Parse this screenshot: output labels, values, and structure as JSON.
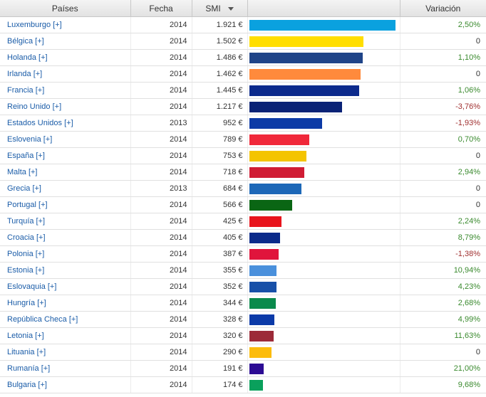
{
  "header": {
    "country": "Países",
    "date": "Fecha",
    "smi": "SMI",
    "variation": "Variación"
  },
  "chart_data": {
    "type": "table",
    "columns": [
      "Países",
      "Fecha",
      "SMI",
      "Variación"
    ],
    "value_max": 1921,
    "rows": [
      {
        "country": "Luxemburgo [+]",
        "date": "2014",
        "smi_label": "1.921 €",
        "value": 1921,
        "color": "#0aa1df",
        "variation": "2,50%",
        "sign": "pos"
      },
      {
        "country": "Bélgica [+]",
        "date": "2014",
        "smi_label": "1.502 €",
        "value": 1502,
        "color": "#ffde00",
        "variation": "0",
        "sign": "zero"
      },
      {
        "country": "Holanda [+]",
        "date": "2014",
        "smi_label": "1.486 €",
        "value": 1486,
        "color": "#1f4488",
        "variation": "1,10%",
        "sign": "pos"
      },
      {
        "country": "Irlanda [+]",
        "date": "2014",
        "smi_label": "1.462 €",
        "value": 1462,
        "color": "#ff8a3c",
        "variation": "0",
        "sign": "zero"
      },
      {
        "country": "Francia [+]",
        "date": "2014",
        "smi_label": "1.445 €",
        "value": 1445,
        "color": "#0c2a8c",
        "variation": "1,06%",
        "sign": "pos"
      },
      {
        "country": "Reino Unido [+]",
        "date": "2014",
        "smi_label": "1.217 €",
        "value": 1217,
        "color": "#0a2276",
        "variation": "-3,76%",
        "sign": "neg"
      },
      {
        "country": "Estados Unidos [+]",
        "date": "2013",
        "smi_label": "952 €",
        "value": 952,
        "color": "#0c3aa6",
        "variation": "-1,93%",
        "sign": "neg"
      },
      {
        "country": "Eslovenia [+]",
        "date": "2014",
        "smi_label": "789 €",
        "value": 789,
        "color": "#f0283a",
        "variation": "0,70%",
        "sign": "pos"
      },
      {
        "country": "España [+]",
        "date": "2014",
        "smi_label": "753 €",
        "value": 753,
        "color": "#f4c400",
        "variation": "0",
        "sign": "zero"
      },
      {
        "country": "Malta [+]",
        "date": "2014",
        "smi_label": "718 €",
        "value": 718,
        "color": "#d01c34",
        "variation": "2,94%",
        "sign": "pos"
      },
      {
        "country": "Grecia [+]",
        "date": "2013",
        "smi_label": "684 €",
        "value": 684,
        "color": "#1d68b8",
        "variation": "0",
        "sign": "zero"
      },
      {
        "country": "Portugal [+]",
        "date": "2014",
        "smi_label": "566 €",
        "value": 566,
        "color": "#0a6614",
        "variation": "0",
        "sign": "zero"
      },
      {
        "country": "Turquía [+]",
        "date": "2014",
        "smi_label": "425 €",
        "value": 425,
        "color": "#e8141c",
        "variation": "2,24%",
        "sign": "pos"
      },
      {
        "country": "Croacia [+]",
        "date": "2014",
        "smi_label": "405 €",
        "value": 405,
        "color": "#0b2a8a",
        "variation": "8,79%",
        "sign": "pos"
      },
      {
        "country": "Polonia [+]",
        "date": "2014",
        "smi_label": "387 €",
        "value": 387,
        "color": "#e0143c",
        "variation": "-1,38%",
        "sign": "neg"
      },
      {
        "country": "Estonia [+]",
        "date": "2014",
        "smi_label": "355 €",
        "value": 355,
        "color": "#4a90dc",
        "variation": "10,94%",
        "sign": "pos"
      },
      {
        "country": "Eslovaquia [+]",
        "date": "2014",
        "smi_label": "352 €",
        "value": 352,
        "color": "#1850a8",
        "variation": "4,23%",
        "sign": "pos"
      },
      {
        "country": "Hungría [+]",
        "date": "2014",
        "smi_label": "344 €",
        "value": 344,
        "color": "#0a8a4c",
        "variation": "2,68%",
        "sign": "pos"
      },
      {
        "country": "República Checa [+]",
        "date": "2014",
        "smi_label": "328 €",
        "value": 328,
        "color": "#0b3aa8",
        "variation": "4,99%",
        "sign": "pos"
      },
      {
        "country": "Letonia [+]",
        "date": "2014",
        "smi_label": "320 €",
        "value": 320,
        "color": "#9c2a38",
        "variation": "11,63%",
        "sign": "pos"
      },
      {
        "country": "Lituania [+]",
        "date": "2014",
        "smi_label": "290 €",
        "value": 290,
        "color": "#fcbc0c",
        "variation": "0",
        "sign": "zero"
      },
      {
        "country": "Rumanía [+]",
        "date": "2014",
        "smi_label": "191 €",
        "value": 191,
        "color": "#2c0c94",
        "variation": "21,00%",
        "sign": "pos"
      },
      {
        "country": "Bulgaria [+]",
        "date": "2014",
        "smi_label": "174 €",
        "value": 174,
        "color": "#0aa05c",
        "variation": "9,68%",
        "sign": "pos"
      }
    ]
  }
}
